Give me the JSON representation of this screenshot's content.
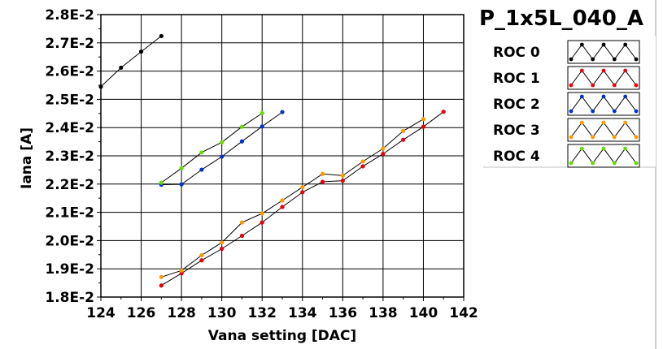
{
  "chart_data": {
    "type": "line",
    "title": "P_1x5L_040_A",
    "xlabel": "Vana setting [DAC]",
    "ylabel": "Iana [A]",
    "xlim": [
      124,
      142
    ],
    "ylim": [
      0.018,
      0.028
    ],
    "x_ticks": [
      124,
      126,
      128,
      130,
      132,
      134,
      136,
      138,
      140,
      142
    ],
    "y_ticks": [
      0.018,
      0.019,
      0.02,
      0.021,
      0.022,
      0.023,
      0.024,
      0.025,
      0.026,
      0.027,
      0.028
    ],
    "x_tick_labels": [
      "124",
      "126",
      "128",
      "130",
      "132",
      "134",
      "136",
      "138",
      "140",
      "142"
    ],
    "y_tick_labels": [
      "1.8E-2",
      "1.9E-2",
      "2.0E-2",
      "2.1E-2",
      "2.2E-2",
      "2.3E-2",
      "2.4E-2",
      "2.5E-2",
      "2.6E-2",
      "2.7E-2",
      "2.8E-2"
    ],
    "grid": true,
    "legend_position": "right",
    "series": [
      {
        "name": "ROC 0",
        "color": "#000000",
        "x": [
          124,
          125,
          126,
          127
        ],
        "y": [
          0.02545,
          0.02612,
          0.02669,
          0.02724
        ]
      },
      {
        "name": "ROC 1",
        "color": "#e8000b",
        "x": [
          127,
          128,
          129,
          130,
          131,
          132,
          133,
          134,
          135,
          136,
          137,
          138,
          139,
          140,
          141
        ],
        "y": [
          0.01841,
          0.01884,
          0.0193,
          0.01971,
          0.02017,
          0.02064,
          0.02119,
          0.02171,
          0.02208,
          0.02212,
          0.02263,
          0.02307,
          0.02357,
          0.02403,
          0.02456
        ]
      },
      {
        "name": "ROC 2",
        "color": "#0033cc",
        "x": [
          127,
          128,
          129,
          130,
          131,
          132,
          133
        ],
        "y": [
          0.02198,
          0.02199,
          0.02251,
          0.02297,
          0.02351,
          0.02404,
          0.02455
        ]
      },
      {
        "name": "ROC 3",
        "color": "#ff9900",
        "x": [
          127,
          128,
          129,
          130,
          131,
          132,
          133,
          134,
          135,
          136,
          137,
          138,
          139,
          140
        ],
        "y": [
          0.01871,
          0.01894,
          0.01948,
          0.01993,
          0.02064,
          0.02096,
          0.02142,
          0.02189,
          0.02236,
          0.0223,
          0.0228,
          0.02326,
          0.02388,
          0.0243
        ]
      },
      {
        "name": "ROC 4",
        "color": "#66dd00",
        "x": [
          127,
          128,
          129,
          130,
          131,
          132
        ],
        "y": [
          0.02205,
          0.02256,
          0.02312,
          0.02348,
          0.02403,
          0.02451
        ]
      }
    ]
  }
}
